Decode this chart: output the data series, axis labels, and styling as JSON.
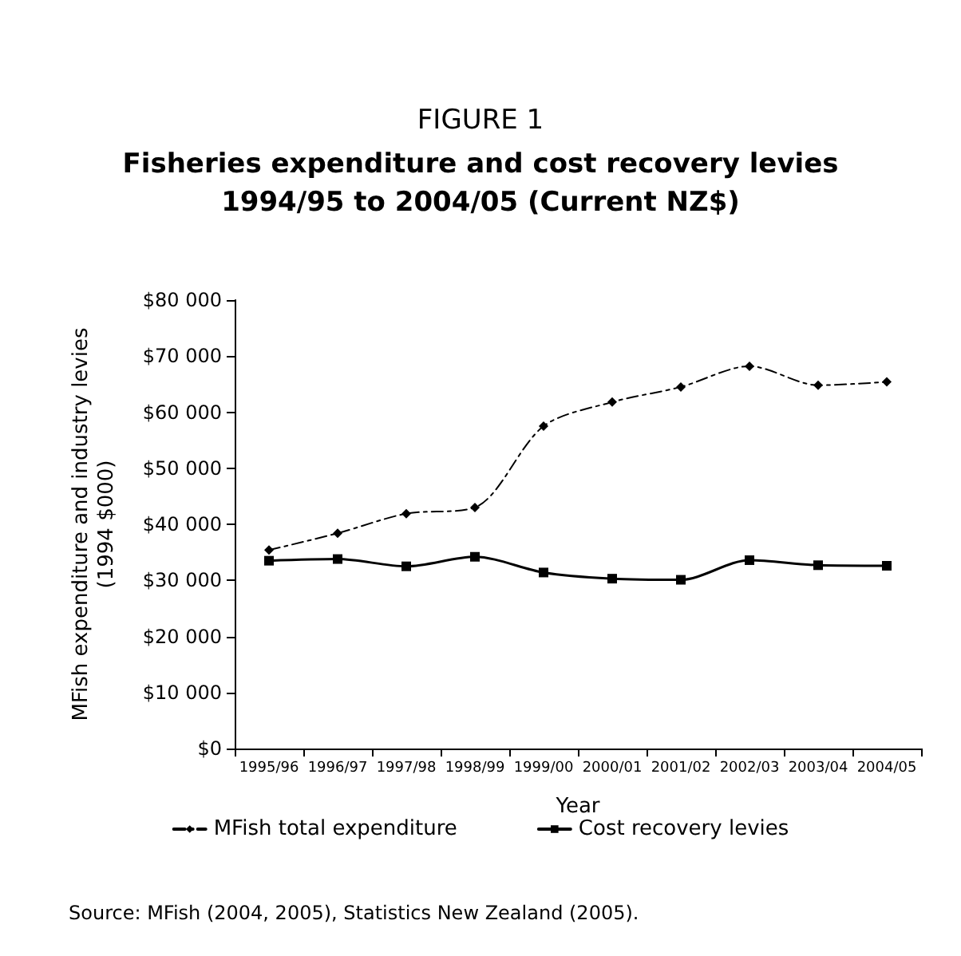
{
  "chart_data": {
    "type": "line",
    "title": "FIGURE 1",
    "subtitle": "Fisheries expenditure and cost recovery levies\n1994/95 to 2004/05 (Current NZ$)",
    "xlabel": "Year",
    "ylabel": "MFish expenditure and industry levies\n(1994 $000)",
    "categories": [
      "1995/96",
      "1996/97",
      "1997/98",
      "1998/99",
      "1999/00",
      "2000/01",
      "2001/02",
      "2002/03",
      "2003/04",
      "2004/05"
    ],
    "series": [
      {
        "name": "MFish total expenditure",
        "color": "#000000",
        "marker": "diamond",
        "line_style": "dashed",
        "values": [
          35400,
          38400,
          41900,
          43000,
          57500,
          61800,
          64500,
          68200,
          64800,
          65400
        ]
      },
      {
        "name": "Cost recovery levies",
        "color": "#000000",
        "marker": "square",
        "line_style": "solid",
        "values": [
          33500,
          33800,
          32500,
          34200,
          31400,
          30300,
          30100,
          33600,
          32700,
          32600
        ]
      }
    ],
    "ylim": [
      0,
      80000
    ],
    "yticks": [
      {
        "value": 0,
        "label": "$0"
      },
      {
        "value": 10000,
        "label": "$10 000"
      },
      {
        "value": 20000,
        "label": "$20 000"
      },
      {
        "value": 30000,
        "label": "$30 000"
      },
      {
        "value": 40000,
        "label": "$40 000"
      },
      {
        "value": 50000,
        "label": "$50 000"
      },
      {
        "value": 60000,
        "label": "$60 000"
      },
      {
        "value": 70000,
        "label": "$70 000"
      },
      {
        "value": 80000,
        "label": "$80 000"
      }
    ],
    "grid": false,
    "legend": "bottom",
    "annotations": [
      "Source: MFish (2004, 2005), Statistics New Zealand (2005)."
    ]
  }
}
